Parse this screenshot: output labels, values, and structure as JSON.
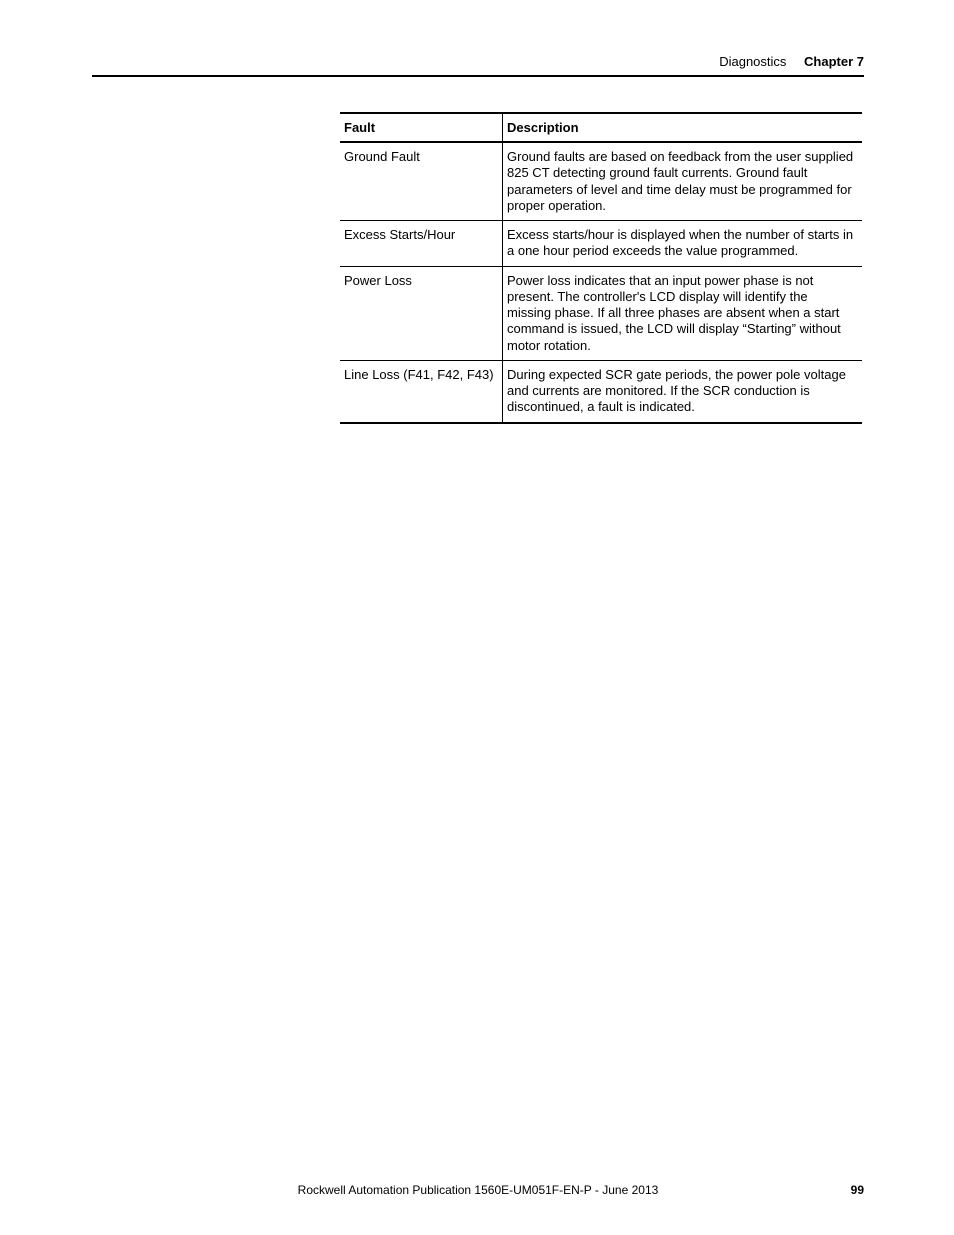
{
  "header": {
    "section": "Diagnostics",
    "chapter": "Chapter 7"
  },
  "table": {
    "columns": [
      "Fault",
      "Description"
    ],
    "rows": [
      {
        "fault": "Ground Fault",
        "description": "Ground faults are based on feedback from the user supplied 825 CT detecting ground fault currents. Ground fault parameters of level and time delay must be programmed for proper operation."
      },
      {
        "fault": "Excess Starts/Hour",
        "description": "Excess starts/hour is displayed when the number of starts in a one hour period exceeds the value programmed."
      },
      {
        "fault": "Power Loss",
        "description": "Power loss indicates that an input power phase is not present. The controller's LCD display will identify the missing phase. If all three phases are absent when a start command is issued, the LCD will display “Starting” without motor rotation."
      },
      {
        "fault": "Line Loss (F41, F42, F43)",
        "description": "During expected SCR gate periods, the power pole voltage and currents are monitored. If the SCR conduction is discontinued, a fault is indicated."
      }
    ]
  },
  "footer": {
    "publication": "Rockwell Automation Publication 1560E-UM051F-EN-P - June 2013",
    "page": "99"
  }
}
